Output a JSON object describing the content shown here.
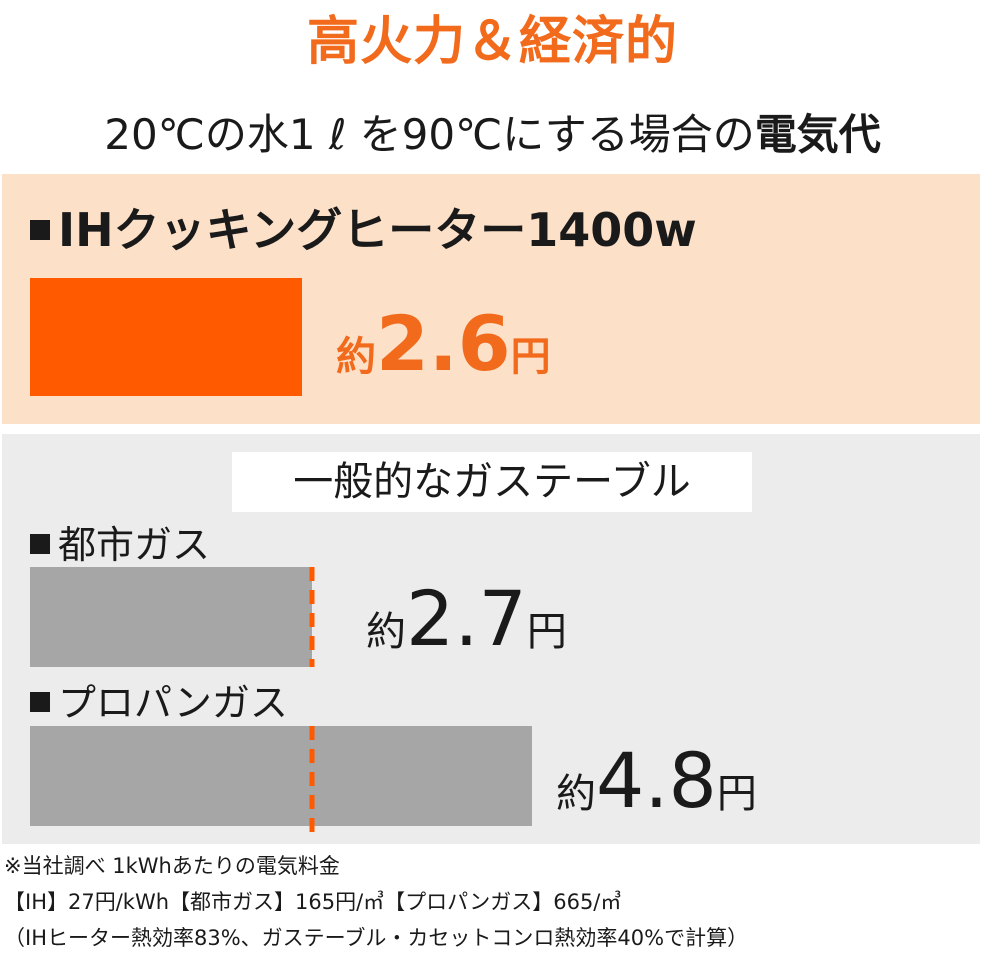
{
  "title": "高火力＆経済的",
  "subtitle": {
    "text": "20℃の水1 ℓ を90℃にする場合の",
    "emphasis": "電気代"
  },
  "ih_section": {
    "heading": "IHクッキングヒーター1400w"
  },
  "gas_section": {
    "heading": "一般的なガステーブル"
  },
  "value_prefix": "約",
  "value_unit": "円",
  "colors": {
    "accent": "#f26a1b",
    "ih_bar": "#ff5a00",
    "gas_bar": "#a6a6a6",
    "ih_panel": "#fde0c8",
    "gas_panel": "#ececec",
    "marker": "#ff5a00"
  },
  "chart_data": {
    "type": "bar",
    "orientation": "horizontal",
    "categories": [
      "IHクッキングヒーター1400w",
      "都市ガス",
      "プロパンガス"
    ],
    "series": [
      {
        "values": [
          2.6,
          2.7,
          4.8
        ]
      }
    ],
    "value_labels": [
      "2.6",
      "2.7",
      "4.8"
    ],
    "reference_line": {
      "value": 2.6,
      "style": "dashed"
    },
    "xlabel": "",
    "ylabel": "",
    "grid": false
  },
  "footnotes": [
    "※当社調べ 1kWhあたりの電気料金",
    "【IH】27円/kWh【都市ガス】165円/㎥【プロパンガス】665/㎥",
    "（IHヒーター熱効率83%、ガステーブル・カセットコンロ熱効率40%で計算）"
  ]
}
